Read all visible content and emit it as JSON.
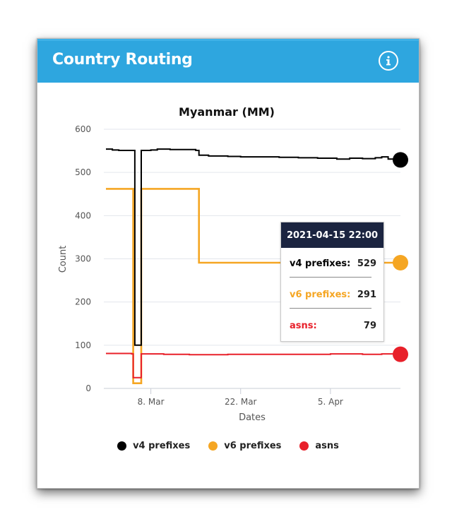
{
  "panel": {
    "title": "Country Routing",
    "info_icon": "info-circle-icon"
  },
  "colors": {
    "header_bg": "#2ea6df",
    "v4": "#000000",
    "v6": "#f5a623",
    "asns": "#e8202a",
    "tooltip_head": "#1b2440"
  },
  "chart_data": {
    "type": "line",
    "step": true,
    "title": "Myanmar (MM)",
    "xlabel": "Dates",
    "ylabel": "Count",
    "x_range": [
      "2021-03-01",
      "2021-04-15"
    ],
    "ylim": [
      0,
      600
    ],
    "yticks": [
      0,
      100,
      200,
      300,
      400,
      500,
      600
    ],
    "xticks": [
      {
        "date": "2021-03-08",
        "label": "8. Mar"
      },
      {
        "date": "2021-03-22",
        "label": "22. Mar"
      },
      {
        "date": "2021-04-05",
        "label": "5. Apr"
      }
    ],
    "grid": true,
    "legend_position": "bottom",
    "series": [
      {
        "name": "v4 prefixes",
        "color": "#000000",
        "points": [
          [
            "2021-03-01",
            554
          ],
          [
            "2021-03-02",
            552
          ],
          [
            "2021-03-03",
            551
          ],
          [
            "2021-03-05",
            551
          ],
          [
            "2021-03-05 12:00",
            100
          ],
          [
            "2021-03-06 12:00",
            100
          ],
          [
            "2021-03-06 12:00",
            551
          ],
          [
            "2021-03-08",
            552
          ],
          [
            "2021-03-09",
            554
          ],
          [
            "2021-03-11",
            553
          ],
          [
            "2021-03-13",
            553
          ],
          [
            "2021-03-15",
            551
          ],
          [
            "2021-03-15 12:00",
            540
          ],
          [
            "2021-03-17",
            538
          ],
          [
            "2021-03-20",
            537
          ],
          [
            "2021-03-22",
            536
          ],
          [
            "2021-03-25",
            536
          ],
          [
            "2021-03-28",
            535
          ],
          [
            "2021-03-31",
            534
          ],
          [
            "2021-04-03",
            533
          ],
          [
            "2021-04-06",
            531
          ],
          [
            "2021-04-08",
            533
          ],
          [
            "2021-04-10",
            532
          ],
          [
            "2021-04-12",
            534
          ],
          [
            "2021-04-13",
            536
          ],
          [
            "2021-04-14",
            531
          ],
          [
            "2021-04-15 22:00",
            529
          ]
        ]
      },
      {
        "name": "v6 prefixes",
        "color": "#f5a623",
        "points": [
          [
            "2021-03-01",
            462
          ],
          [
            "2021-03-05",
            462
          ],
          [
            "2021-03-05 06:00",
            12
          ],
          [
            "2021-03-06 12:00",
            12
          ],
          [
            "2021-03-06 12:00",
            462
          ],
          [
            "2021-03-15",
            462
          ],
          [
            "2021-03-15 12:00",
            291
          ],
          [
            "2021-04-15 22:00",
            291
          ]
        ]
      },
      {
        "name": "asns",
        "color": "#e8202a",
        "points": [
          [
            "2021-03-01",
            81
          ],
          [
            "2021-03-05",
            80
          ],
          [
            "2021-03-05 06:00",
            25
          ],
          [
            "2021-03-06 12:00",
            25
          ],
          [
            "2021-03-06 12:00",
            80
          ],
          [
            "2021-03-10",
            79
          ],
          [
            "2021-03-14",
            78
          ],
          [
            "2021-03-20",
            79
          ],
          [
            "2021-03-28",
            79
          ],
          [
            "2021-04-05",
            80
          ],
          [
            "2021-04-10",
            79
          ],
          [
            "2021-04-13",
            80
          ],
          [
            "2021-04-15 22:00",
            79
          ]
        ]
      }
    ],
    "tooltip": {
      "date": "2021-04-15 22:00",
      "rows": [
        {
          "label": "v4 prefixes:",
          "value": "529",
          "color": "#000000"
        },
        {
          "label": "v6 prefixes:",
          "value": "291",
          "color": "#f5a623"
        },
        {
          "label": "asns:",
          "value": "79",
          "color": "#e8202a"
        }
      ]
    }
  }
}
